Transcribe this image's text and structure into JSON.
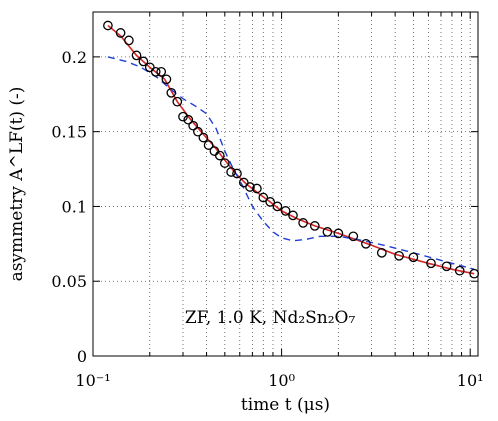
{
  "chart_data": {
    "type": "scatter",
    "xlabel": "time t (μs)",
    "ylabel": "asymmetry A^LF(t) (-)",
    "xscale": "log",
    "xlim": [
      0.1,
      11
    ],
    "ylim": [
      0,
      0.23
    ],
    "grid": true,
    "annotation": "ZF, 1.0 K, Nd₂Sn₂O₇",
    "x_ticks": [
      0.1,
      1,
      10
    ],
    "x_tick_labels": [
      "10⁻¹",
      "10⁰",
      "10¹"
    ],
    "y_ticks": [
      0,
      0.05,
      0.1,
      0.15,
      0.2
    ],
    "y_tick_labels": [
      "0",
      "0.05",
      "0.1",
      "0.15",
      "0.2"
    ],
    "colors": {
      "fit": "#d62728",
      "model": "#1f3fd6",
      "markers": "#000000"
    },
    "series": [
      {
        "kind": "markers",
        "x": [
          0.12,
          0.14,
          0.155,
          0.17,
          0.185,
          0.2,
          0.215,
          0.23,
          0.245,
          0.26,
          0.28,
          0.3,
          0.32,
          0.34,
          0.36,
          0.385,
          0.41,
          0.44,
          0.47,
          0.5,
          0.54,
          0.58,
          0.63,
          0.68,
          0.74,
          0.8,
          0.87,
          0.95,
          1.05,
          1.15,
          1.3,
          1.5,
          1.75,
          2.0,
          2.4,
          2.8,
          3.4,
          4.2,
          5.0,
          6.2,
          7.5,
          8.8,
          10.5
        ],
        "y": [
          0.221,
          0.216,
          0.211,
          0.201,
          0.197,
          0.193,
          0.19,
          0.19,
          0.185,
          0.176,
          0.17,
          0.16,
          0.158,
          0.154,
          0.15,
          0.146,
          0.141,
          0.137,
          0.134,
          0.129,
          0.123,
          0.122,
          0.116,
          0.113,
          0.112,
          0.106,
          0.103,
          0.1,
          0.097,
          0.094,
          0.089,
          0.087,
          0.083,
          0.082,
          0.08,
          0.075,
          0.069,
          0.067,
          0.066,
          0.062,
          0.06,
          0.057,
          0.055
        ]
      },
      {
        "kind": "line",
        "style": "solid",
        "x": [
          0.12,
          0.14,
          0.17,
          0.2,
          0.24,
          0.28,
          0.33,
          0.38,
          0.44,
          0.5,
          0.58,
          0.65,
          0.75,
          0.85,
          1.0,
          1.2,
          1.5,
          2.0,
          3.0,
          4.0,
          6.0,
          8.0,
          10.5
        ],
        "y": [
          0.221,
          0.214,
          0.201,
          0.193,
          0.185,
          0.17,
          0.158,
          0.149,
          0.14,
          0.131,
          0.121,
          0.115,
          0.109,
          0.104,
          0.097,
          0.092,
          0.087,
          0.082,
          0.074,
          0.068,
          0.062,
          0.058,
          0.055
        ]
      },
      {
        "kind": "line",
        "style": "dashed",
        "x": [
          0.12,
          0.15,
          0.18,
          0.22,
          0.26,
          0.3,
          0.35,
          0.4,
          0.45,
          0.5,
          0.55,
          0.62,
          0.7,
          0.8,
          0.9,
          1.0,
          1.15,
          1.35,
          1.6,
          2.0,
          2.5,
          3.5,
          5.0,
          7.0,
          10.5
        ],
        "y": [
          0.2,
          0.197,
          0.193,
          0.186,
          0.178,
          0.172,
          0.167,
          0.162,
          0.152,
          0.137,
          0.126,
          0.114,
          0.1,
          0.09,
          0.083,
          0.079,
          0.077,
          0.078,
          0.08,
          0.08,
          0.078,
          0.074,
          0.069,
          0.064,
          0.058
        ]
      }
    ]
  }
}
